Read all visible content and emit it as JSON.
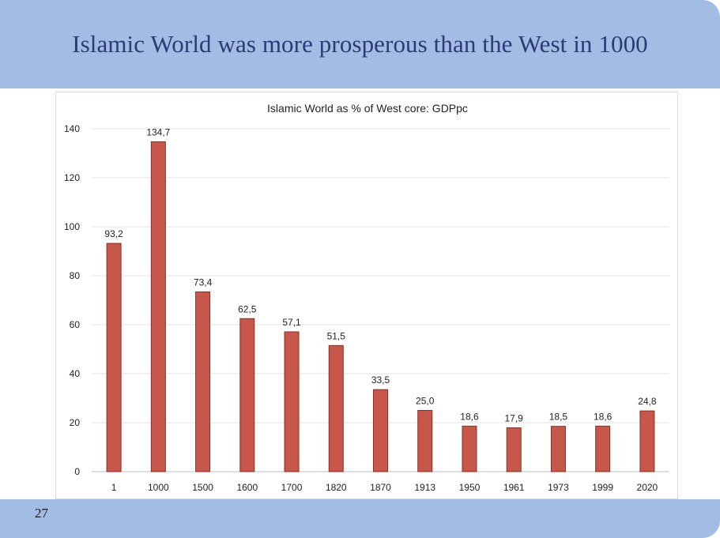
{
  "slide": {
    "title": "Islamic World was more prosperous than the West in 1000",
    "page_number": "27"
  },
  "colors": {
    "banner": "#a2bce3",
    "title_text": "#2c3a78",
    "bar_fill": "#c8574b",
    "bar_stroke": "#8b2f26"
  },
  "chart_data": {
    "type": "bar",
    "title": "Islamic World as % of West core: GDPpc",
    "xlabel": "",
    "ylabel": "",
    "categories": [
      "1",
      "1000",
      "1500",
      "1600",
      "1700",
      "1820",
      "1870",
      "1913",
      "1950",
      "1961",
      "1973",
      "1999",
      "2020"
    ],
    "values": [
      93.2,
      134.7,
      73.4,
      62.5,
      57.1,
      51.5,
      33.5,
      25.0,
      18.6,
      17.9,
      18.5,
      18.6,
      24.8
    ],
    "value_labels": [
      "93,2",
      "134,7",
      "73,4",
      "62,5",
      "57,1",
      "51,5",
      "33,5",
      "25,0",
      "18,6",
      "17,9",
      "18,5",
      "18,6",
      "24,8"
    ],
    "ylim": [
      0,
      140
    ],
    "yticks": [
      0,
      20,
      40,
      60,
      80,
      100,
      120,
      140
    ],
    "grid": true,
    "legend": "none"
  }
}
